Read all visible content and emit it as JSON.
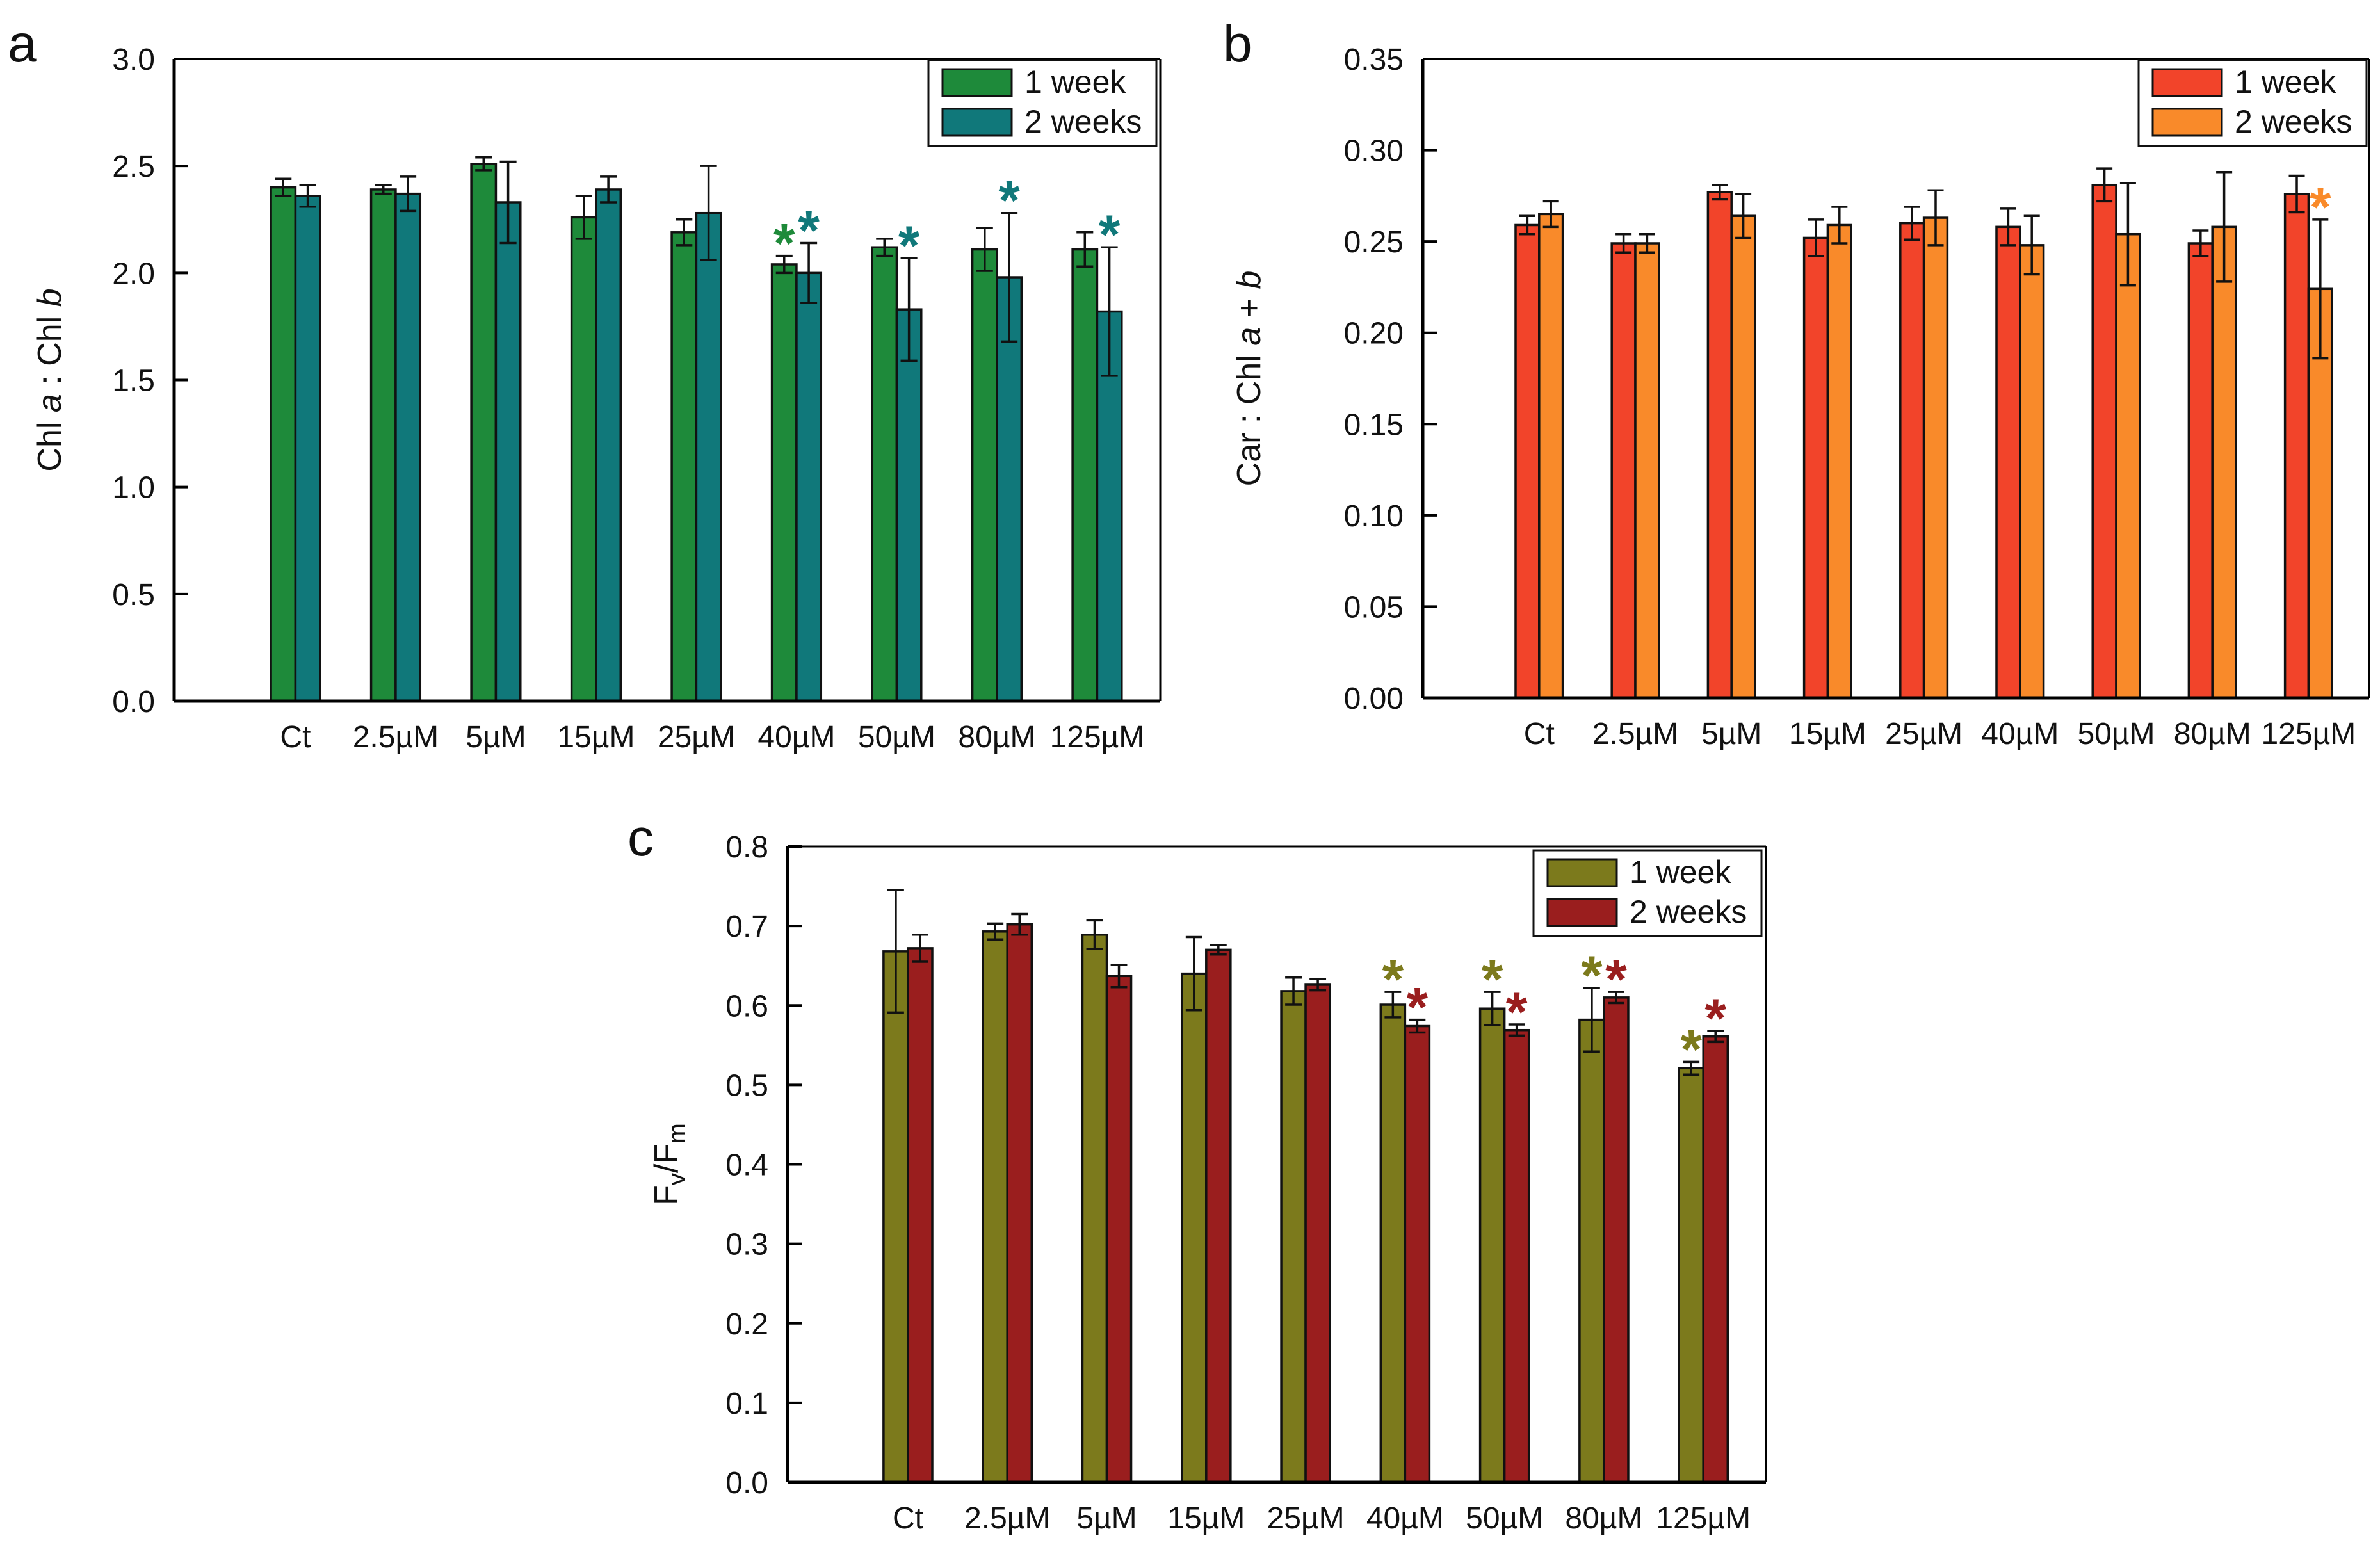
{
  "chart_data": [
    {
      "panel": "a",
      "type": "bar",
      "ylabel": [
        "Chl ",
        "a",
        " : Chl ",
        "b"
      ],
      "ylim": [
        0,
        3.0
      ],
      "yticks": [
        "0.0",
        "0.5",
        "1.0",
        "1.5",
        "2.0",
        "2.5",
        "3.0"
      ],
      "categories": [
        "Ct",
        "2.5µM",
        "5µM",
        "15µM",
        "25µM",
        "40µM",
        "50µM",
        "80µM",
        "125µM"
      ],
      "legend_position": "top-right",
      "series": [
        {
          "name": "1 week",
          "color": "#1e8a3a",
          "values": [
            2.4,
            2.39,
            2.51,
            2.26,
            2.19,
            2.04,
            2.12,
            2.11,
            2.11
          ],
          "errors": [
            0.04,
            0.02,
            0.03,
            0.1,
            0.06,
            0.04,
            0.04,
            0.1,
            0.08
          ],
          "significant": [
            false,
            false,
            false,
            false,
            false,
            true,
            false,
            false,
            false
          ]
        },
        {
          "name": "2 weeks",
          "color": "#10787a",
          "values": [
            2.36,
            2.37,
            2.33,
            2.39,
            2.28,
            2.0,
            1.83,
            1.98,
            1.82
          ],
          "errors": [
            0.05,
            0.08,
            0.19,
            0.06,
            0.22,
            0.14,
            0.24,
            0.3,
            0.3
          ],
          "significant": [
            false,
            false,
            false,
            false,
            false,
            true,
            true,
            true,
            true
          ]
        }
      ]
    },
    {
      "panel": "b",
      "type": "bar",
      "ylabel": [
        "Car : Chl ",
        "a",
        " + ",
        "b"
      ],
      "ylim": [
        0,
        0.35
      ],
      "yticks": [
        "0.00",
        "0.05",
        "0.10",
        "0.15",
        "0.20",
        "0.25",
        "0.30",
        "0.35"
      ],
      "categories": [
        "Ct",
        "2.5µM",
        "5µM",
        "15µM",
        "25µM",
        "40µM",
        "50µM",
        "80µM",
        "125µM"
      ],
      "legend_position": "top-right",
      "series": [
        {
          "name": "1 week",
          "color": "#f2442a",
          "values": [
            0.259,
            0.249,
            0.277,
            0.252,
            0.26,
            0.258,
            0.281,
            0.249,
            0.276
          ],
          "errors": [
            0.005,
            0.005,
            0.004,
            0.01,
            0.009,
            0.01,
            0.009,
            0.007,
            0.01
          ],
          "significant": [
            false,
            false,
            false,
            false,
            false,
            false,
            false,
            false,
            false
          ]
        },
        {
          "name": "2 weeks",
          "color": "#f98a2a",
          "values": [
            0.265,
            0.249,
            0.264,
            0.259,
            0.263,
            0.248,
            0.254,
            0.258,
            0.224
          ],
          "errors": [
            0.007,
            0.005,
            0.012,
            0.01,
            0.015,
            0.016,
            0.028,
            0.03,
            0.038
          ],
          "significant": [
            false,
            false,
            false,
            false,
            false,
            false,
            false,
            false,
            true
          ]
        }
      ]
    },
    {
      "panel": "c",
      "type": "bar",
      "ylabel": [
        "F",
        "v",
        "/F",
        "m"
      ],
      "ylim": [
        0,
        0.8
      ],
      "yticks": [
        "0.0",
        "0.1",
        "0.2",
        "0.3",
        "0.4",
        "0.5",
        "0.6",
        "0.7",
        "0.8"
      ],
      "categories": [
        "Ct",
        "2.5µM",
        "5µM",
        "15µM",
        "25µM",
        "40µM",
        "50µM",
        "80µM",
        "125µM"
      ],
      "legend_position": "top-right",
      "series": [
        {
          "name": "1 week",
          "color": "#7c7a1c",
          "values": [
            0.668,
            0.693,
            0.689,
            0.64,
            0.618,
            0.601,
            0.596,
            0.582,
            0.521
          ],
          "errors": [
            0.077,
            0.01,
            0.018,
            0.046,
            0.017,
            0.016,
            0.021,
            0.04,
            0.008
          ],
          "significant": [
            false,
            false,
            false,
            false,
            false,
            true,
            true,
            true,
            true
          ]
        },
        {
          "name": "2 weeks",
          "color": "#9a1e1e",
          "values": [
            0.672,
            0.702,
            0.637,
            0.67,
            0.626,
            0.574,
            0.569,
            0.61,
            0.561
          ],
          "errors": [
            0.017,
            0.013,
            0.014,
            0.006,
            0.007,
            0.008,
            0.007,
            0.007,
            0.007
          ],
          "significant": [
            false,
            false,
            false,
            false,
            false,
            true,
            true,
            true,
            true
          ]
        }
      ]
    }
  ]
}
